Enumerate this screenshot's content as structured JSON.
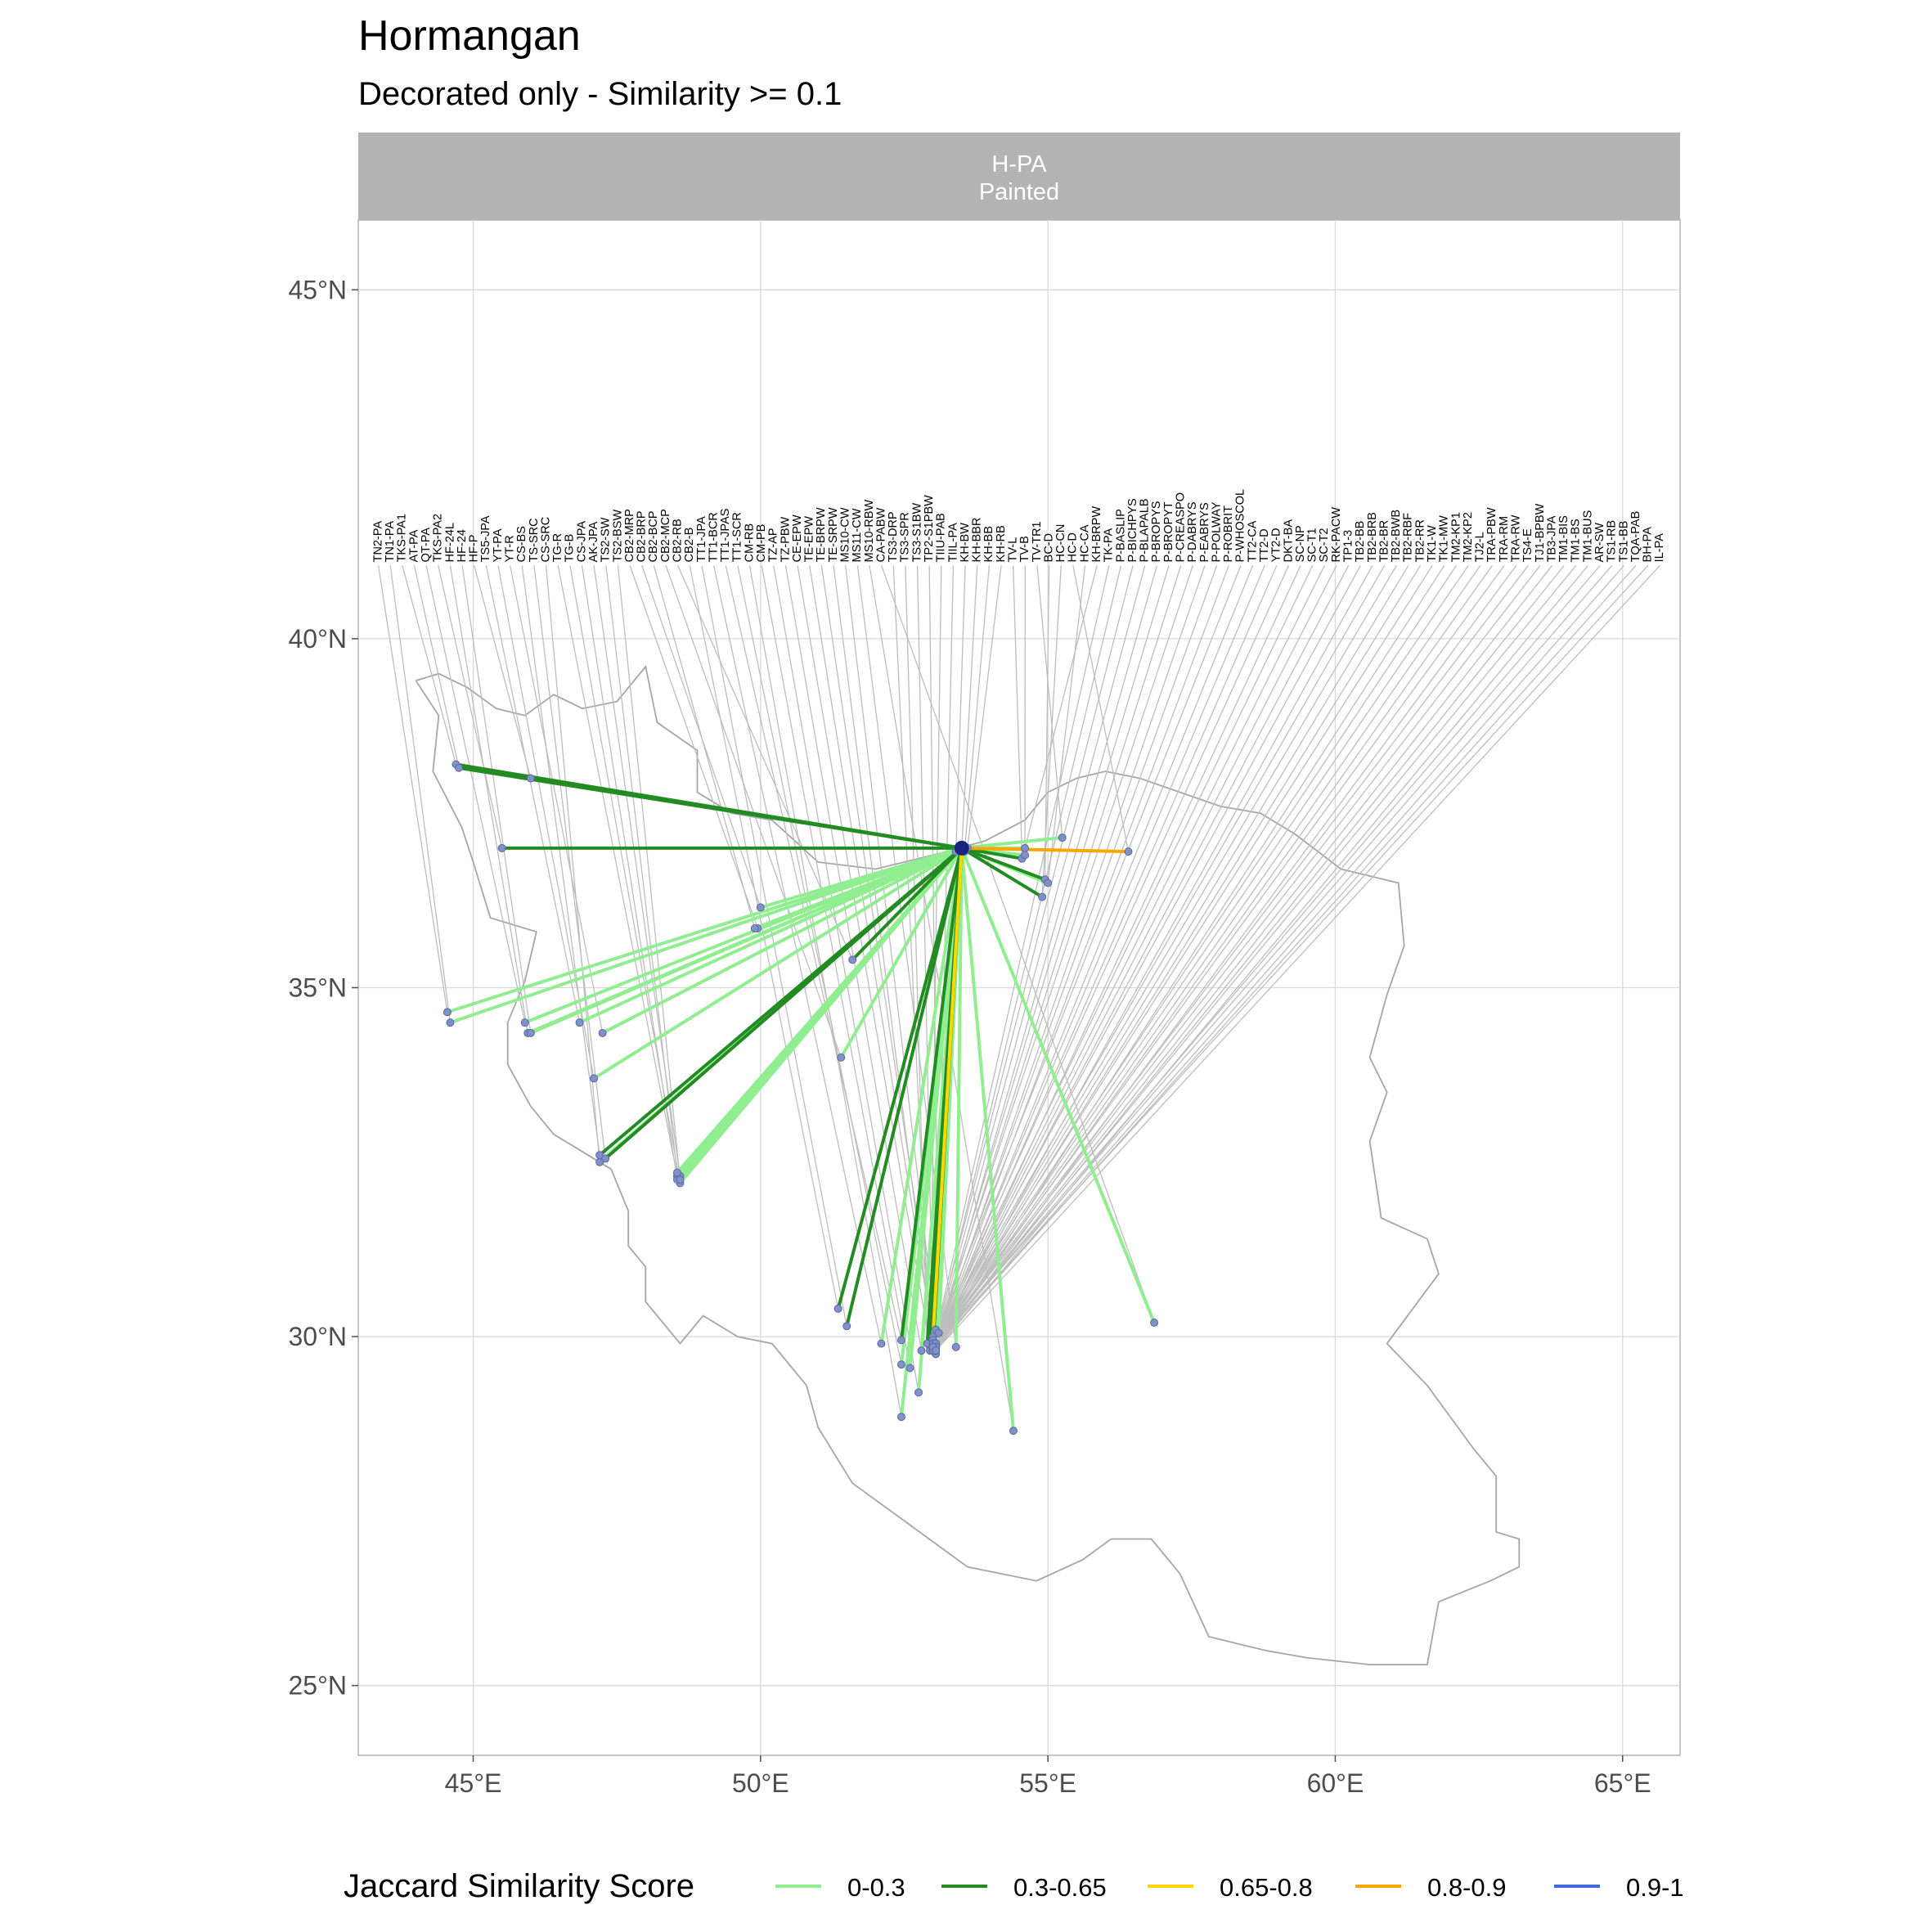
{
  "chart_data": {
    "type": "map-network",
    "title": "Hormangan",
    "subtitle": "Decorated only - Similarity >= 0.1",
    "facet": {
      "line1": "H-PA",
      "line2": "Painted"
    },
    "xlim": [
      43.0,
      66.0
    ],
    "ylim": [
      24.0,
      46.0
    ],
    "x_ticks": [
      {
        "value": 45,
        "label": "45°E"
      },
      {
        "value": 50,
        "label": "50°E"
      },
      {
        "value": 55,
        "label": "55°E"
      },
      {
        "value": 60,
        "label": "60°E"
      },
      {
        "value": 65,
        "label": "65°E"
      }
    ],
    "y_ticks": [
      {
        "value": 45,
        "label": "45°N"
      },
      {
        "value": 40,
        "label": "40°N"
      },
      {
        "value": 35,
        "label": "35°N"
      },
      {
        "value": 30,
        "label": "30°N"
      },
      {
        "value": 25,
        "label": "25°N"
      }
    ],
    "grid": true,
    "focal_site": {
      "name": "H-PA",
      "lon": 53.5,
      "lat": 37.0
    },
    "label_lat": 41.05,
    "label_lon_start": 43.35,
    "label_lon_end": 65.65,
    "legend": {
      "title": "Jaccard Similarity Score",
      "position": "bottom",
      "items": [
        {
          "label": "0-0.3",
          "color": "#90EE90"
        },
        {
          "label": "0.3-0.65",
          "color": "#228B22"
        },
        {
          "label": "0.65-0.8",
          "color": "#FFD700"
        },
        {
          "label": "0.8-0.9",
          "color": "#FFA500"
        },
        {
          "label": "0.9-1",
          "color": "#4169E1"
        }
      ]
    },
    "colors": {
      "leader": "#bdbdbd",
      "border": "#a6a6a6",
      "grid": "#d9d9d9",
      "strip": "#b3b3b3",
      "point": "#8090c8",
      "focal": "#1a237e"
    },
    "border": [
      [
        44.0,
        39.4
      ],
      [
        44.4,
        39.5
      ],
      [
        44.9,
        39.3
      ],
      [
        45.4,
        39.0
      ],
      [
        45.9,
        38.9
      ],
      [
        46.4,
        39.2
      ],
      [
        46.9,
        39.0
      ],
      [
        47.5,
        39.1
      ],
      [
        48.0,
        39.6
      ],
      [
        48.2,
        38.8
      ],
      [
        48.9,
        38.4
      ],
      [
        48.9,
        37.8
      ],
      [
        49.5,
        37.5
      ],
      [
        50.2,
        37.4
      ],
      [
        51.0,
        36.8
      ],
      [
        52.0,
        36.7
      ],
      [
        53.0,
        36.9
      ],
      [
        53.9,
        37.1
      ],
      [
        54.6,
        37.4
      ],
      [
        55.0,
        37.8
      ],
      [
        55.5,
        38.0
      ],
      [
        56.0,
        38.1
      ],
      [
        56.6,
        38.0
      ],
      [
        57.3,
        37.8
      ],
      [
        58.0,
        37.6
      ],
      [
        58.7,
        37.5
      ],
      [
        59.3,
        37.2
      ],
      [
        60.1,
        36.7
      ],
      [
        60.6,
        36.6
      ],
      [
        61.1,
        36.5
      ],
      [
        61.2,
        35.6
      ],
      [
        60.9,
        34.9
      ],
      [
        60.6,
        34.0
      ],
      [
        60.9,
        33.5
      ],
      [
        60.6,
        32.8
      ],
      [
        60.8,
        31.7
      ],
      [
        61.6,
        31.4
      ],
      [
        61.8,
        30.9
      ],
      [
        60.9,
        29.9
      ],
      [
        61.6,
        29.3
      ],
      [
        62.4,
        28.4
      ],
      [
        62.8,
        28.0
      ],
      [
        62.8,
        27.2
      ],
      [
        63.2,
        27.1
      ],
      [
        63.2,
        26.7
      ],
      [
        62.7,
        26.5
      ],
      [
        61.8,
        26.2
      ],
      [
        61.6,
        25.3
      ],
      [
        60.6,
        25.3
      ],
      [
        59.5,
        25.4
      ],
      [
        58.8,
        25.5
      ],
      [
        57.8,
        25.7
      ],
      [
        57.3,
        26.6
      ],
      [
        56.8,
        27.1
      ],
      [
        56.1,
        27.1
      ],
      [
        55.6,
        26.8
      ],
      [
        54.8,
        26.5
      ],
      [
        53.6,
        26.7
      ],
      [
        52.6,
        27.3
      ],
      [
        51.6,
        27.9
      ],
      [
        51.0,
        28.7
      ],
      [
        50.8,
        29.3
      ],
      [
        50.2,
        29.9
      ],
      [
        49.6,
        30.0
      ],
      [
        49.0,
        30.3
      ],
      [
        48.6,
        29.9
      ],
      [
        48.0,
        30.5
      ],
      [
        48.0,
        31.0
      ],
      [
        47.7,
        31.3
      ],
      [
        47.7,
        31.8
      ],
      [
        47.4,
        32.4
      ],
      [
        46.4,
        32.9
      ],
      [
        46.0,
        33.3
      ],
      [
        45.6,
        33.9
      ],
      [
        45.6,
        34.5
      ],
      [
        45.9,
        35.1
      ],
      [
        46.1,
        35.8
      ],
      [
        45.3,
        36.0
      ],
      [
        45.0,
        36.8
      ],
      [
        44.8,
        37.3
      ],
      [
        44.3,
        38.1
      ],
      [
        44.4,
        38.9
      ],
      [
        44.0,
        39.4
      ]
    ],
    "sites": [
      {
        "name": "TN2-PA",
        "lon": 44.55,
        "lat": 34.65,
        "score": "0-0.3"
      },
      {
        "name": "TN1-PA",
        "lon": 44.6,
        "lat": 34.5,
        "score": "0-0.3"
      },
      {
        "name": "TKS-PA1",
        "lon": 44.7,
        "lat": 38.2,
        "score": "0.3-0.65"
      },
      {
        "name": "AT-PA",
        "lon": 44.75,
        "lat": 38.15,
        "score": "0.3-0.65"
      },
      {
        "name": "QT-PA",
        "lon": 45.9,
        "lat": 34.5,
        "score": "0-0.3"
      },
      {
        "name": "TKS-PA2",
        "lon": 45.5,
        "lat": 37.0,
        "score": "0.3-0.65"
      },
      {
        "name": "HF-24L",
        "lon": 45.95,
        "lat": 34.35,
        "score": "0-0.3"
      },
      {
        "name": "HF-24",
        "lon": 46.0,
        "lat": 34.35,
        "score": "0-0.3"
      },
      {
        "name": "HF-P",
        "lon": 46.0,
        "lat": 38.0,
        "score": "0-0.3"
      },
      {
        "name": "TS5-JPA",
        "lon": 46.85,
        "lat": 34.5,
        "score": "0-0.3"
      },
      {
        "name": "YT-PA",
        "lon": 47.1,
        "lat": 33.7,
        "score": "0-0.3"
      },
      {
        "name": "YT-R",
        "lon": 47.25,
        "lat": 34.35,
        "score": "0-0.3"
      },
      {
        "name": "CS-BS",
        "lon": 47.2,
        "lat": 32.6,
        "score": "0.3-0.65"
      },
      {
        "name": "TS-SRC",
        "lon": 47.3,
        "lat": 32.55,
        "score": "0.3-0.65"
      },
      {
        "name": "CS-SRC",
        "lon": 47.2,
        "lat": 32.5,
        "score": "0-0.3"
      },
      {
        "name": "TG-R",
        "lon": 48.55,
        "lat": 32.3,
        "score": "0-0.3"
      },
      {
        "name": "TG-B",
        "lon": 48.6,
        "lat": 32.2,
        "score": "0-0.3"
      },
      {
        "name": "CS-JPA",
        "lon": 48.55,
        "lat": 32.25,
        "score": "0-0.3"
      },
      {
        "name": "AK-JPA",
        "lon": 48.6,
        "lat": 32.3,
        "score": "0-0.3"
      },
      {
        "name": "TS2-SW",
        "lon": 48.55,
        "lat": 32.35,
        "score": "0-0.3"
      },
      {
        "name": "TS2-BSW",
        "lon": 48.6,
        "lat": 32.25,
        "score": "0-0.3"
      },
      {
        "name": "CB2-MRP",
        "lon": 49.95,
        "lat": 35.85,
        "score": "0-0.3"
      },
      {
        "name": "CB2-BRP",
        "lon": 50.0,
        "lat": 36.15,
        "score": "0-0.3"
      },
      {
        "name": "CB2-BCP",
        "lon": 49.9,
        "lat": 35.85,
        "score": "0-0.3"
      },
      {
        "name": "CB2-MCP",
        "lon": 51.4,
        "lat": 34.0,
        "score": "0-0.3"
      },
      {
        "name": "CB2-RB",
        "lon": 51.6,
        "lat": 35.4,
        "score": "0.3-0.65"
      },
      {
        "name": "CB2-B",
        "lon": 51.35,
        "lat": 30.4,
        "score": "0.3-0.65"
      },
      {
        "name": "TT1-JPA",
        "lon": 51.5,
        "lat": 30.15,
        "score": "0.3-0.65"
      },
      {
        "name": "TT1-BCR",
        "lon": 52.1,
        "lat": 29.9,
        "score": "0-0.3"
      },
      {
        "name": "TT1-JPAS",
        "lon": 52.45,
        "lat": 29.95,
        "score": "0.3-0.65"
      },
      {
        "name": "TT1-SCR",
        "lon": 52.45,
        "lat": 29.6,
        "score": "0-0.3"
      },
      {
        "name": "CM-RB",
        "lon": 52.45,
        "lat": 28.85,
        "score": "0-0.3"
      },
      {
        "name": "CM-PB",
        "lon": 52.6,
        "lat": 29.55,
        "score": "0-0.3"
      },
      {
        "name": "TZ-AP",
        "lon": 52.75,
        "lat": 29.2,
        "score": "0-0.3"
      },
      {
        "name": "TZ-PBW",
        "lon": 52.8,
        "lat": 29.8,
        "score": "0-0.3"
      },
      {
        "name": "CE-EPW",
        "lon": 52.95,
        "lat": 29.85,
        "score": "0.3-0.65"
      },
      {
        "name": "TE-EPW",
        "lon": 53.0,
        "lat": 30.0,
        "score": "0.65-0.8"
      },
      {
        "name": "TE-BRPW",
        "lon": 53.05,
        "lat": 29.9,
        "score": "0-0.3"
      },
      {
        "name": "TE-SRPW",
        "lon": 53.0,
        "lat": 29.85,
        "score": "0.3-0.65"
      },
      {
        "name": "MS10-CW",
        "lon": 53.05,
        "lat": 30.1,
        "score": "0-0.3"
      },
      {
        "name": "MS11-CW",
        "lon": 53.4,
        "lat": 29.85,
        "score": "0-0.3"
      },
      {
        "name": "MS10-RBW",
        "lon": 54.4,
        "lat": 28.65,
        "score": "0-0.3"
      },
      {
        "name": "CA-PABW",
        "lon": 56.85,
        "lat": 30.2,
        "score": "0-0.3"
      },
      {
        "name": "TS3-DRP",
        "lon": 52.95,
        "lat": 29.8,
        "score": "0.3-0.65"
      },
      {
        "name": "TS3-SPR",
        "lon": 52.9,
        "lat": 29.9,
        "score": "0.3-0.65"
      },
      {
        "name": "TS3-S1BW",
        "lon": 53.0,
        "lat": 29.95,
        "score": "0-0.3"
      },
      {
        "name": "TP2-S1PBW",
        "lon": 53.1,
        "lat": 30.05,
        "score": "0-0.3"
      },
      {
        "name": "TIIU-PAB",
        "lon": 52.95,
        "lat": 29.8,
        "score": "0-0.3"
      },
      {
        "name": "TIIL-PA",
        "lon": 53.05,
        "lat": 29.75,
        "score": "0-0.3"
      },
      {
        "name": "KH-BW",
        "lon": 53.4,
        "lat": 36.95,
        "score": "0.9-1"
      },
      {
        "name": "KH-BBR",
        "lon": 53.5,
        "lat": 37.0,
        "score": "0.9-1"
      },
      {
        "name": "KH-BB",
        "lon": 53.55,
        "lat": 36.95,
        "score": "0.9-1"
      },
      {
        "name": "KH-RB",
        "lon": 53.6,
        "lat": 37.0,
        "score": "0.9-1"
      },
      {
        "name": "TV-L",
        "lon": 54.55,
        "lat": 36.85,
        "score": "0.3-0.65"
      },
      {
        "name": "TV-B",
        "lon": 54.6,
        "lat": 36.9,
        "score": "0-0.3"
      },
      {
        "name": "TV-TR1",
        "lon": 55.25,
        "lat": 37.15,
        "score": "0-0.3"
      },
      {
        "name": "BC-D",
        "lon": 54.95,
        "lat": 36.55,
        "score": "0.3-0.65"
      },
      {
        "name": "HC-CN",
        "lon": 54.9,
        "lat": 36.3,
        "score": "0.3-0.65"
      },
      {
        "name": "HC-D",
        "lon": 56.4,
        "lat": 36.95,
        "score": "0.8-0.9"
      },
      {
        "name": "HC-CA",
        "lon": 55.0,
        "lat": 36.5,
        "score": "0-0.3"
      },
      {
        "name": "KH-BRPW",
        "lon": 54.6,
        "lat": 37.0,
        "score": "0-0.3"
      },
      {
        "name": "TK-PA",
        "lon": 53.0,
        "lat": 29.85,
        "score": "0-0.3"
      },
      {
        "name": "P-BASLIP",
        "lon": 53.0,
        "lat": 29.8,
        "score": "0-0.3"
      },
      {
        "name": "P-BICHPYS",
        "lon": 53.0,
        "lat": 29.85,
        "score": "0-0.3"
      },
      {
        "name": "P-BLAPALB",
        "lon": 53.0,
        "lat": 29.8,
        "score": "0-0.3"
      },
      {
        "name": "P-BROPYS",
        "lon": 53.05,
        "lat": 29.85,
        "score": "0-0.3"
      },
      {
        "name": "P-BROPYT",
        "lon": 53.0,
        "lat": 29.8,
        "score": "0-0.3"
      },
      {
        "name": "P-CREASPO",
        "lon": 53.05,
        "lat": 29.9,
        "score": "0-0.3"
      },
      {
        "name": "P-DABRYS",
        "lon": 53.0,
        "lat": 29.85,
        "score": "0-0.3"
      },
      {
        "name": "P-EABRYS",
        "lon": 53.05,
        "lat": 29.85,
        "score": "0-0.3"
      },
      {
        "name": "P-POLWAY",
        "lon": 53.0,
        "lat": 29.8,
        "score": "0-0.3"
      },
      {
        "name": "P-ROBRIT",
        "lon": 53.05,
        "lat": 29.85,
        "score": "0-0.3"
      },
      {
        "name": "P-WHOSCOL",
        "lon": 53.0,
        "lat": 29.9,
        "score": "0-0.3"
      },
      {
        "name": "TT2-CA",
        "lon": 53.05,
        "lat": 29.85,
        "score": "0-0.3"
      },
      {
        "name": "TT2-D",
        "lon": 53.0,
        "lat": 29.8,
        "score": "0-0.3"
      },
      {
        "name": "YT2-D",
        "lon": 53.05,
        "lat": 29.85,
        "score": "0-0.3"
      },
      {
        "name": "DKT-BA",
        "lon": 53.0,
        "lat": 29.85,
        "score": "0-0.3"
      },
      {
        "name": "SC-NP",
        "lon": 53.05,
        "lat": 29.8,
        "score": "0-0.3"
      },
      {
        "name": "SC-T1",
        "lon": 53.0,
        "lat": 29.85,
        "score": "0-0.3"
      },
      {
        "name": "SC-T2",
        "lon": 53.05,
        "lat": 29.9,
        "score": "0-0.3"
      },
      {
        "name": "RK-PACW",
        "lon": 53.0,
        "lat": 29.8,
        "score": "0-0.3"
      },
      {
        "name": "TP1-3",
        "lon": 53.05,
        "lat": 29.85,
        "score": "0-0.3"
      },
      {
        "name": "TB2-BB",
        "lon": 53.0,
        "lat": 29.85,
        "score": "0-0.3"
      },
      {
        "name": "TB2-BRB",
        "lon": 53.05,
        "lat": 29.8,
        "score": "0-0.3"
      },
      {
        "name": "TB2-BR",
        "lon": 53.0,
        "lat": 29.85,
        "score": "0-0.3"
      },
      {
        "name": "TB2-BWB",
        "lon": 53.05,
        "lat": 29.9,
        "score": "0-0.3"
      },
      {
        "name": "TB2-RBF",
        "lon": 53.0,
        "lat": 29.8,
        "score": "0-0.3"
      },
      {
        "name": "TB2-RR",
        "lon": 53.05,
        "lat": 29.85,
        "score": "0-0.3"
      },
      {
        "name": "TK1-W",
        "lon": 53.0,
        "lat": 29.85,
        "score": "0-0.3"
      },
      {
        "name": "TK1-MW",
        "lon": 53.05,
        "lat": 29.8,
        "score": "0-0.3"
      },
      {
        "name": "TM2-KP1",
        "lon": 53.0,
        "lat": 29.85,
        "score": "0-0.3"
      },
      {
        "name": "TM2-KP2",
        "lon": 53.05,
        "lat": 29.9,
        "score": "0-0.3"
      },
      {
        "name": "TJ2-L",
        "lon": 53.0,
        "lat": 29.8,
        "score": "0-0.3"
      },
      {
        "name": "TRA-PBW",
        "lon": 53.05,
        "lat": 29.85,
        "score": "0-0.3"
      },
      {
        "name": "TRA-RM",
        "lon": 53.0,
        "lat": 29.85,
        "score": "0-0.3"
      },
      {
        "name": "TRA-RW",
        "lon": 53.05,
        "lat": 29.8,
        "score": "0-0.3"
      },
      {
        "name": "TS4-E",
        "lon": 53.0,
        "lat": 29.85,
        "score": "0-0.3"
      },
      {
        "name": "TJ1-BPBW",
        "lon": 53.05,
        "lat": 29.9,
        "score": "0-0.3"
      },
      {
        "name": "TB3-JPA",
        "lon": 53.0,
        "lat": 29.8,
        "score": "0-0.3"
      },
      {
        "name": "TM1-BIS",
        "lon": 53.05,
        "lat": 29.85,
        "score": "0-0.3"
      },
      {
        "name": "TM1-BS",
        "lon": 53.0,
        "lat": 29.85,
        "score": "0-0.3"
      },
      {
        "name": "TM1-BUS",
        "lon": 53.05,
        "lat": 29.8,
        "score": "0-0.3"
      },
      {
        "name": "AR-SW",
        "lon": 53.0,
        "lat": 29.85,
        "score": "0-0.3"
      },
      {
        "name": "TS1-RB",
        "lon": 53.05,
        "lat": 29.9,
        "score": "0-0.3"
      },
      {
        "name": "TS1-BB",
        "lon": 53.0,
        "lat": 29.8,
        "score": "0-0.3"
      },
      {
        "name": "TQA-PAB",
        "lon": 53.05,
        "lat": 29.85,
        "score": "0-0.3"
      },
      {
        "name": "BH-PA",
        "lon": 53.0,
        "lat": 29.85,
        "score": "0-0.3"
      },
      {
        "name": "IL-PA",
        "lon": 53.05,
        "lat": 29.8,
        "score": "0-0.3"
      }
    ]
  }
}
